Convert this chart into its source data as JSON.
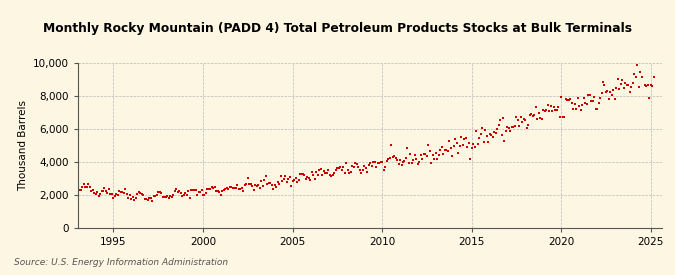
{
  "title": "Monthly Rocky Mountain (PADD 4) Total Petroleum Products Stocks at Bulk Terminals",
  "ylabel": "Thousand Barrels",
  "source": "Source: U.S. Energy Information Administration",
  "bg_color": "#fdf6e3",
  "plot_bg_color": "#fdf6e3",
  "line_color": "#cc0000",
  "marker_color": "#cc0000",
  "ylim": [
    0,
    10000
  ],
  "yticks": [
    0,
    2000,
    4000,
    6000,
    8000,
    10000
  ],
  "ytick_labels": [
    "0",
    "2,000",
    "4,000",
    "6,000",
    "8,000",
    "10,000"
  ],
  "xlim_start": 1993.0,
  "xlim_end": 2025.6,
  "xticks": [
    1995,
    2000,
    2005,
    2010,
    2015,
    2020,
    2025
  ],
  "grid_color": "#aaaaaa",
  "spine_color": "#555555"
}
